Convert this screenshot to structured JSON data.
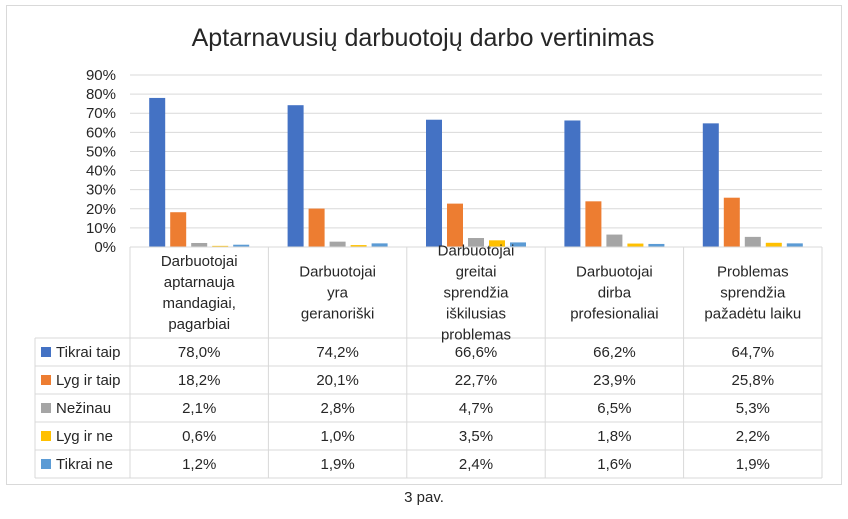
{
  "caption": "3 pav.",
  "chart_data": {
    "type": "bar",
    "title": "Aptarnavusių darbuotojų darbo vertinimas",
    "categories": [
      "Darbuotojai aptarnauja mandagiai, pagarbiai",
      "Darbuotojai yra geranoriški",
      "Darbuotojai greitai sprendžia iškilusias problemas",
      "Darbuotojai dirba profesionaliai",
      "Problemas sprendžia pažadėtu laiku"
    ],
    "series": [
      {
        "name": "Tikrai taip",
        "color": "#4472c4",
        "values": [
          78.0,
          74.2,
          66.6,
          66.2,
          64.7
        ],
        "labels": [
          "78,0%",
          "74,2%",
          "66,6%",
          "66,2%",
          "64,7%"
        ]
      },
      {
        "name": "Lyg ir taip",
        "color": "#ed7d31",
        "values": [
          18.2,
          20.1,
          22.7,
          23.9,
          25.8
        ],
        "labels": [
          "18,2%",
          "20,1%",
          "22,7%",
          "23,9%",
          "25,8%"
        ]
      },
      {
        "name": "Nežinau",
        "color": "#a5a5a5",
        "values": [
          2.1,
          2.8,
          4.7,
          6.5,
          5.3
        ],
        "labels": [
          "2,1%",
          "2,8%",
          "4,7%",
          "6,5%",
          "5,3%"
        ]
      },
      {
        "name": "Lyg ir ne",
        "color": "#ffc000",
        "values": [
          0.6,
          1.0,
          3.5,
          1.8,
          2.2
        ],
        "labels": [
          "0,6%",
          "1,0%",
          "3,5%",
          "1,8%",
          "2,2%"
        ]
      },
      {
        "name": "Tikrai ne",
        "color": "#5b9bd5",
        "values": [
          1.2,
          1.9,
          2.4,
          1.6,
          1.9
        ],
        "labels": [
          "1,2%",
          "1,9%",
          "2,4%",
          "1,6%",
          "1,9%"
        ]
      }
    ],
    "yticks": [
      "0%",
      "10%",
      "20%",
      "30%",
      "40%",
      "50%",
      "60%",
      "70%",
      "80%",
      "90%"
    ],
    "ylim": [
      0,
      90
    ],
    "grid": true,
    "legend": "data-table"
  }
}
